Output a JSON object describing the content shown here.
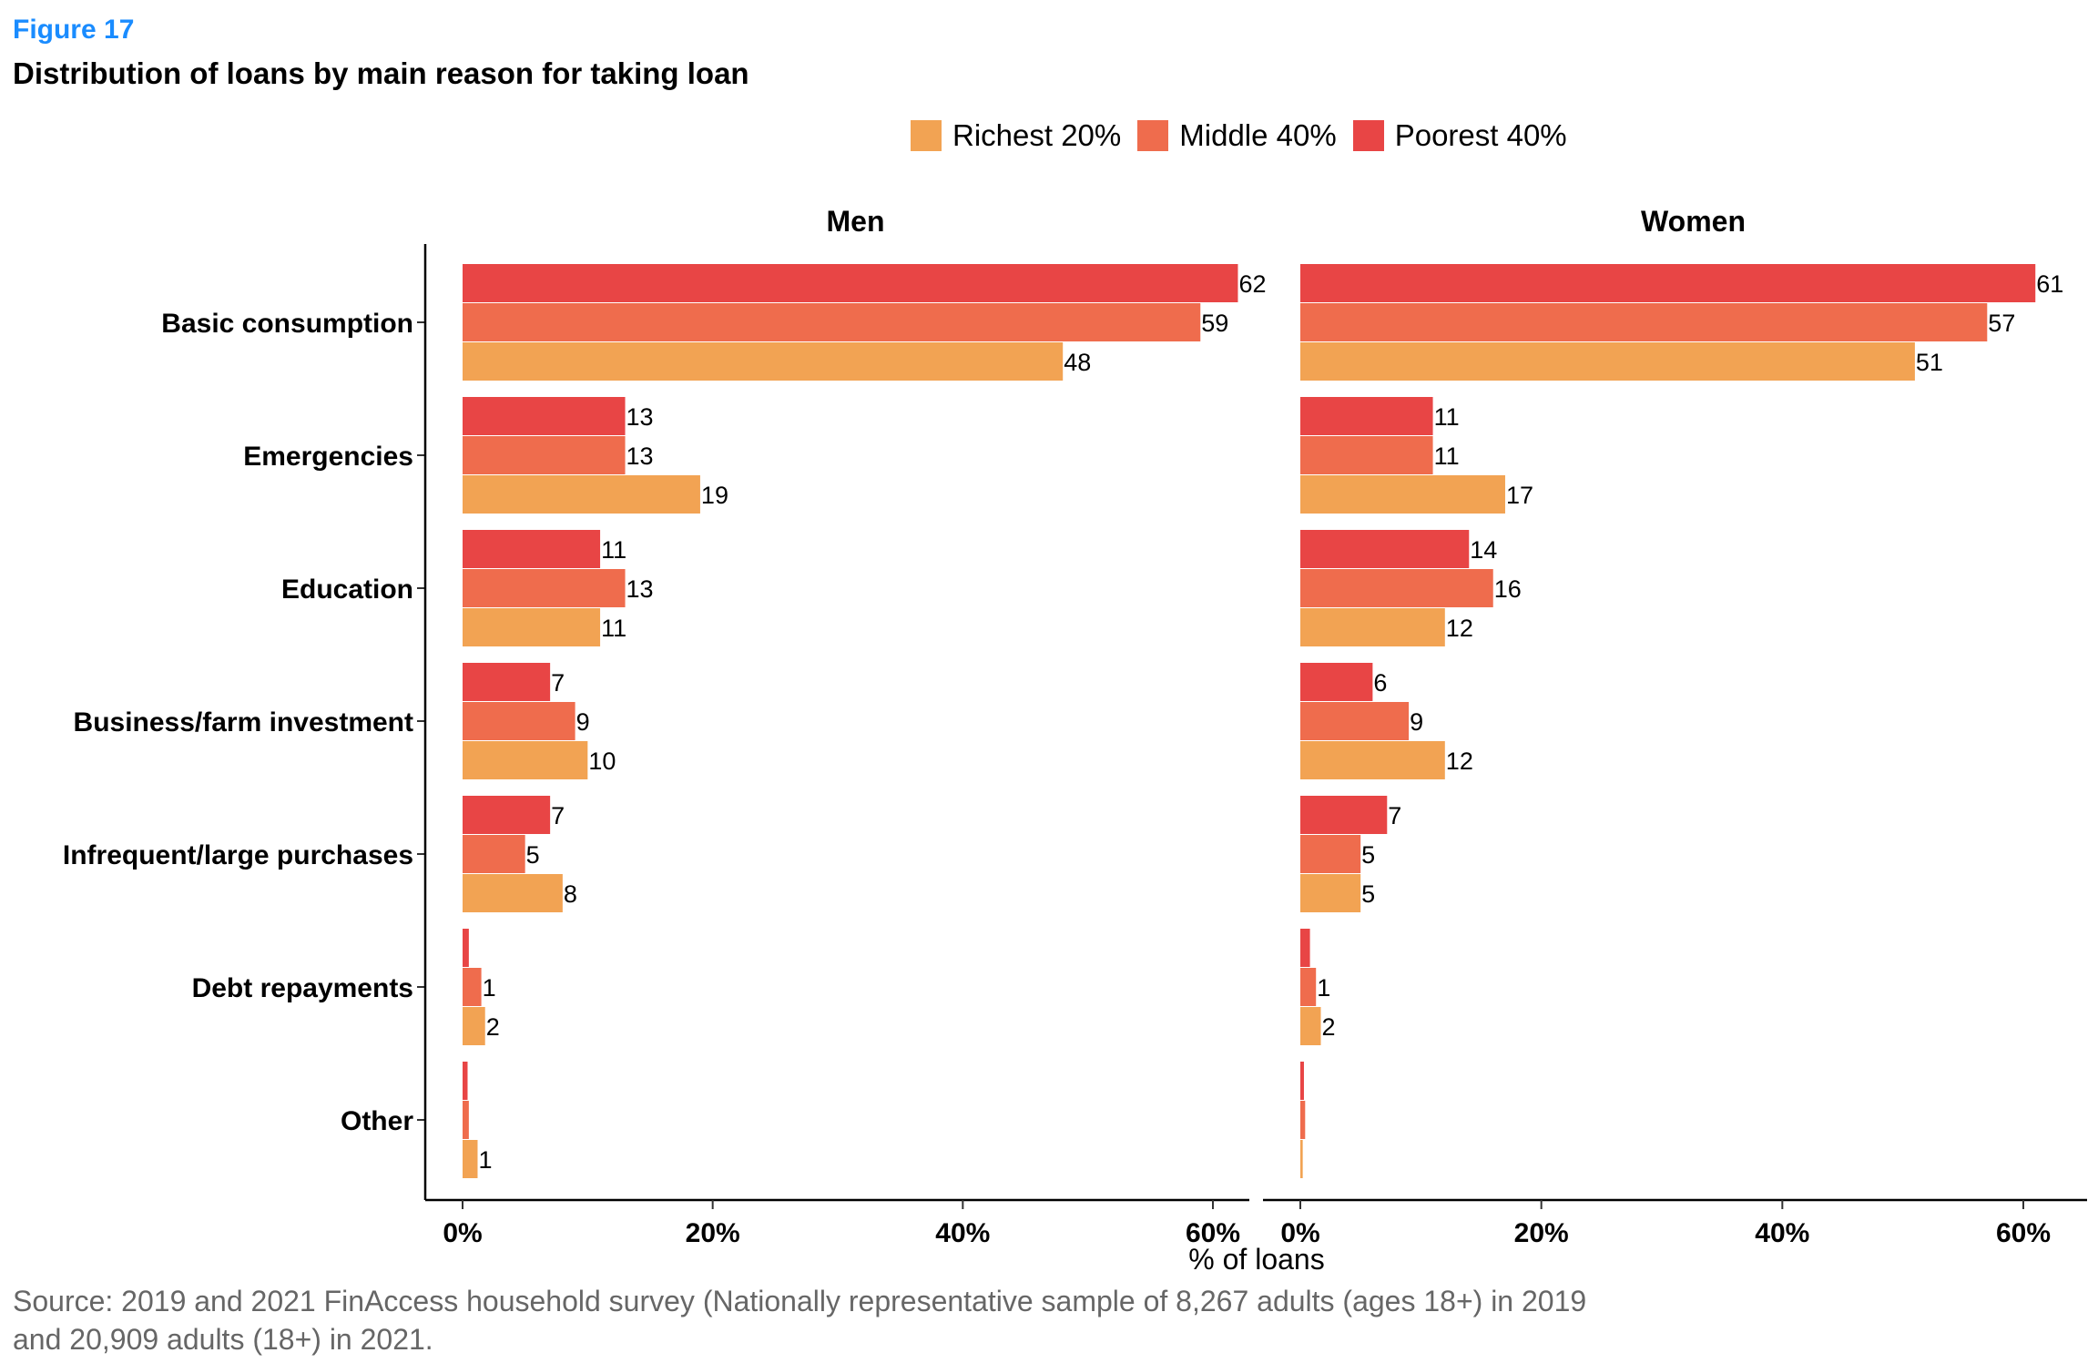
{
  "figure": {
    "label": "Figure 17",
    "title": "Distribution of loans by main reason for taking loan",
    "source_line1": "Source: 2019 and 2021 FinAccess household survey (Nationally representative sample of 8,267 adults (ages 18+) in 2019",
    "source_line2": "and 20,909 adults (18+) in 2021."
  },
  "chart_data": {
    "type": "bar",
    "orientation": "horizontal",
    "title": "Distribution of loans by main reason for taking loan",
    "xlabel": "% of loans",
    "ylabel": "",
    "xlim": [
      0,
      65
    ],
    "x_ticks": [
      "0%",
      "20%",
      "40%",
      "60%"
    ],
    "x_tick_values": [
      0,
      20,
      40,
      60
    ],
    "legend_position": "top",
    "categories": [
      "Basic consumption",
      "Emergencies",
      "Education",
      "Business/farm investment",
      "Infrequent/large purchases",
      "Debt repayments",
      "Other"
    ],
    "series_meta": [
      {
        "name": "Richest 20%",
        "color": "#F2A353"
      },
      {
        "name": "Middle 40%",
        "color": "#EF6C4D"
      },
      {
        "name": "Poorest 40%",
        "color": "#E84545"
      }
    ],
    "panels": [
      {
        "title": "Men",
        "series": [
          {
            "name": "Poorest 40%",
            "values": [
              62,
              13,
              11,
              7,
              7,
              0.5,
              0.4
            ],
            "labels": [
              "62",
              "13",
              "11",
              "7",
              "7",
              "",
              ""
            ]
          },
          {
            "name": "Middle 40%",
            "values": [
              59,
              13,
              13,
              9,
              5,
              1.5,
              0.5
            ],
            "labels": [
              "59",
              "13",
              "13",
              "9",
              "5",
              "1",
              ""
            ]
          },
          {
            "name": "Richest 20%",
            "values": [
              48,
              19,
              11,
              10,
              8,
              1.8,
              1.2
            ],
            "labels": [
              "48",
              "19",
              "11",
              "10",
              "8",
              "2",
              "1"
            ]
          }
        ]
      },
      {
        "title": "Women",
        "series": [
          {
            "name": "Poorest 40%",
            "values": [
              61,
              11,
              14,
              6,
              7.2,
              0.8,
              0.3
            ],
            "labels": [
              "61",
              "11",
              "14",
              "6",
              "7",
              "",
              ""
            ]
          },
          {
            "name": "Middle 40%",
            "values": [
              57,
              11,
              16,
              9,
              5,
              1.3,
              0.4
            ],
            "labels": [
              "57",
              "11",
              "16",
              "9",
              "5",
              "1",
              ""
            ]
          },
          {
            "name": "Richest 20%",
            "values": [
              51,
              17,
              12,
              12,
              5,
              1.7,
              0.2
            ],
            "labels": [
              "51",
              "17",
              "12",
              "12",
              "5",
              "2",
              ""
            ]
          }
        ]
      }
    ]
  }
}
